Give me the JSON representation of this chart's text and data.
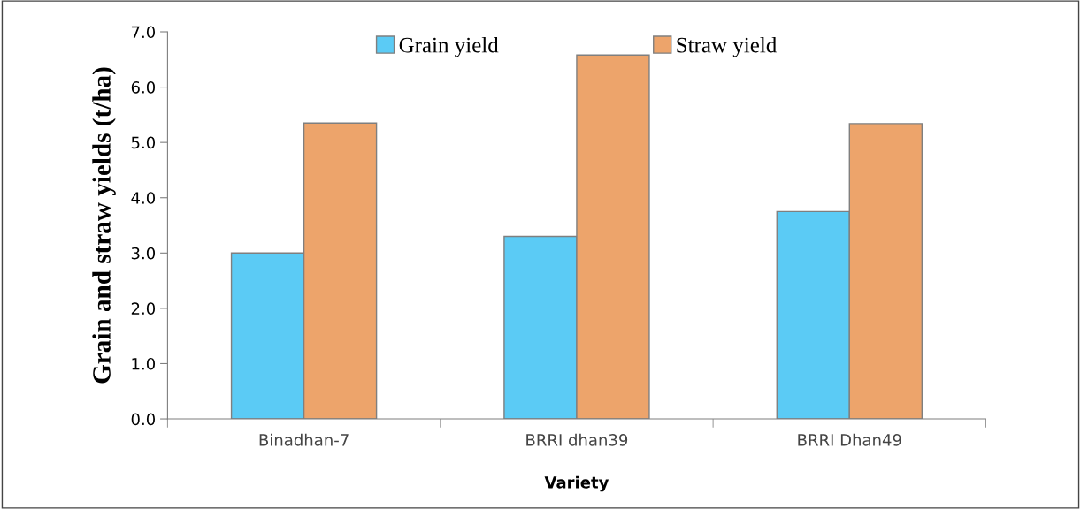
{
  "chart_data": {
    "type": "bar",
    "xlabel": "Variety",
    "ylabel": "Grain and straw yields (t/ha)",
    "categories": [
      "Binadhan-7",
      "BRRI dhan39",
      "BRRI Dhan49"
    ],
    "series": [
      {
        "name": "Grain yield",
        "color": "#5bcbf5",
        "values": [
          3.0,
          3.3,
          3.75
        ]
      },
      {
        "name": "Straw yield",
        "color": "#eda46b",
        "values": [
          5.35,
          6.58,
          5.34
        ]
      }
    ],
    "ylim": [
      0,
      7
    ],
    "yticks": [
      {
        "value": 0,
        "label": "0.0"
      },
      {
        "value": 1,
        "label": "1.0"
      },
      {
        "value": 2,
        "label": "2.0"
      },
      {
        "value": 3,
        "label": "3.0"
      },
      {
        "value": 4,
        "label": "4.0"
      },
      {
        "value": 5,
        "label": "5.0"
      },
      {
        "value": 6,
        "label": "6.0"
      },
      {
        "value": 7,
        "label": "7.0"
      }
    ],
    "grid": false,
    "legend": "top"
  }
}
